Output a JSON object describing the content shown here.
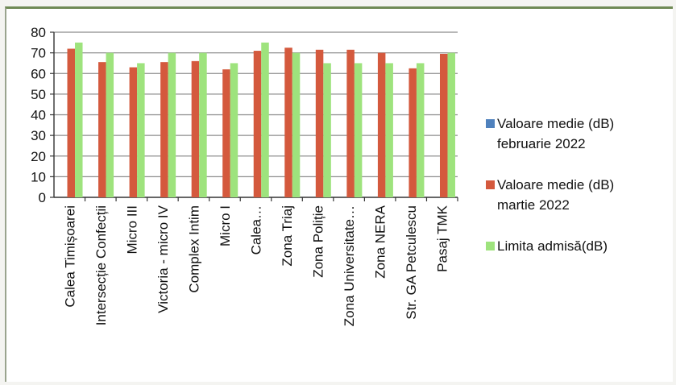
{
  "chart_data": {
    "type": "bar",
    "title": "",
    "xlabel": "",
    "ylabel": "",
    "ylim": [
      0,
      80
    ],
    "yticks": [
      "0",
      "10",
      "20",
      "30",
      "40",
      "50",
      "60",
      "70",
      "80"
    ],
    "grid": true,
    "legend_position": "right",
    "categories": [
      "Calea Timișoarei",
      "Intersecție Confecții",
      "Micro III",
      "Victoria - micro IV",
      "Complex Intim",
      "Micro I",
      "Calea…",
      "Zona Triaj",
      "Zona Poliție",
      "Zona Universitate…",
      "Zona NERA",
      "Str. GA Petculescu",
      "Pasaj TMK"
    ],
    "series": [
      {
        "name": "Valoare medie (dB) februarie 2022",
        "legend_lines": [
          "Valoare medie (dB)",
          "februarie 2022"
        ],
        "color": "#4f81bd",
        "values": [
          null,
          null,
          null,
          null,
          null,
          null,
          null,
          null,
          null,
          null,
          null,
          null,
          null
        ]
      },
      {
        "name": "Valoare medie (dB) martie 2022",
        "legend_lines": [
          "Valoare medie (dB)",
          "martie 2022"
        ],
        "color": "#d4593d",
        "values": [
          72,
          65.5,
          63,
          65.5,
          66,
          62,
          71,
          72.5,
          71.5,
          71.5,
          70,
          62.5,
          69.5
        ]
      },
      {
        "name": "Limita admisă(dB)",
        "legend_lines": [
          "Limita admisă(dB)"
        ],
        "color": "#9ee37d",
        "values": [
          75,
          70,
          65,
          70,
          70,
          65,
          75,
          70,
          65,
          65,
          65,
          65,
          70
        ]
      }
    ]
  }
}
